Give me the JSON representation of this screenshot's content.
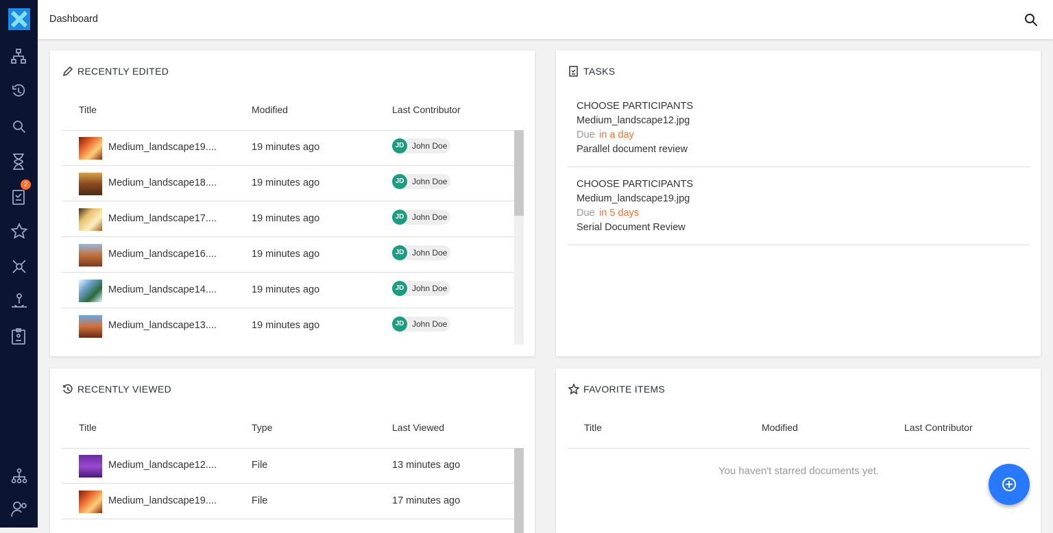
{
  "header": {
    "title": "Dashboard"
  },
  "sidebar": {
    "badge": "2"
  },
  "recently_edited": {
    "title": "RECENTLY EDITED",
    "columns": [
      "Title",
      "Modified",
      "Last Contributor"
    ],
    "rows": [
      {
        "title": "Medium_landscape19....",
        "modified": "19 minutes ago",
        "initials": "JD",
        "contributor": "John Doe"
      },
      {
        "title": "Medium_landscape18....",
        "modified": "19 minutes ago",
        "initials": "JD",
        "contributor": "John Doe"
      },
      {
        "title": "Medium_landscape17....",
        "modified": "19 minutes ago",
        "initials": "JD",
        "contributor": "John Doe"
      },
      {
        "title": "Medium_landscape16....",
        "modified": "19 minutes ago",
        "initials": "JD",
        "contributor": "John Doe"
      },
      {
        "title": "Medium_landscape14....",
        "modified": "19 minutes ago",
        "initials": "JD",
        "contributor": "John Doe"
      },
      {
        "title": "Medium_landscape13....",
        "modified": "19 minutes ago",
        "initials": "JD",
        "contributor": "John Doe"
      }
    ]
  },
  "tasks": {
    "title": "TASKS",
    "items": [
      {
        "name": "CHOOSE PARTICIPANTS",
        "file": "Medium_landscape12.jpg",
        "due_label": "Due",
        "due": "in a day",
        "process": "Parallel document review"
      },
      {
        "name": "CHOOSE PARTICIPANTS",
        "file": "Medium_landscape19.jpg",
        "due_label": "Due",
        "due": "in 5 days",
        "process": "Serial Document Review"
      }
    ]
  },
  "recently_viewed": {
    "title": "RECENTLY VIEWED",
    "columns": [
      "Title",
      "Type",
      "Last Viewed"
    ],
    "rows": [
      {
        "title": "Medium_landscape12....",
        "type": "File",
        "last_viewed": "13 minutes ago"
      },
      {
        "title": "Medium_landscape19....",
        "type": "File",
        "last_viewed": "17 minutes ago"
      }
    ]
  },
  "favorite_items": {
    "title": "FAVORITE ITEMS",
    "columns": [
      "Title",
      "Modified",
      "Last Contributor"
    ],
    "empty": "You haven't starred documents yet."
  }
}
